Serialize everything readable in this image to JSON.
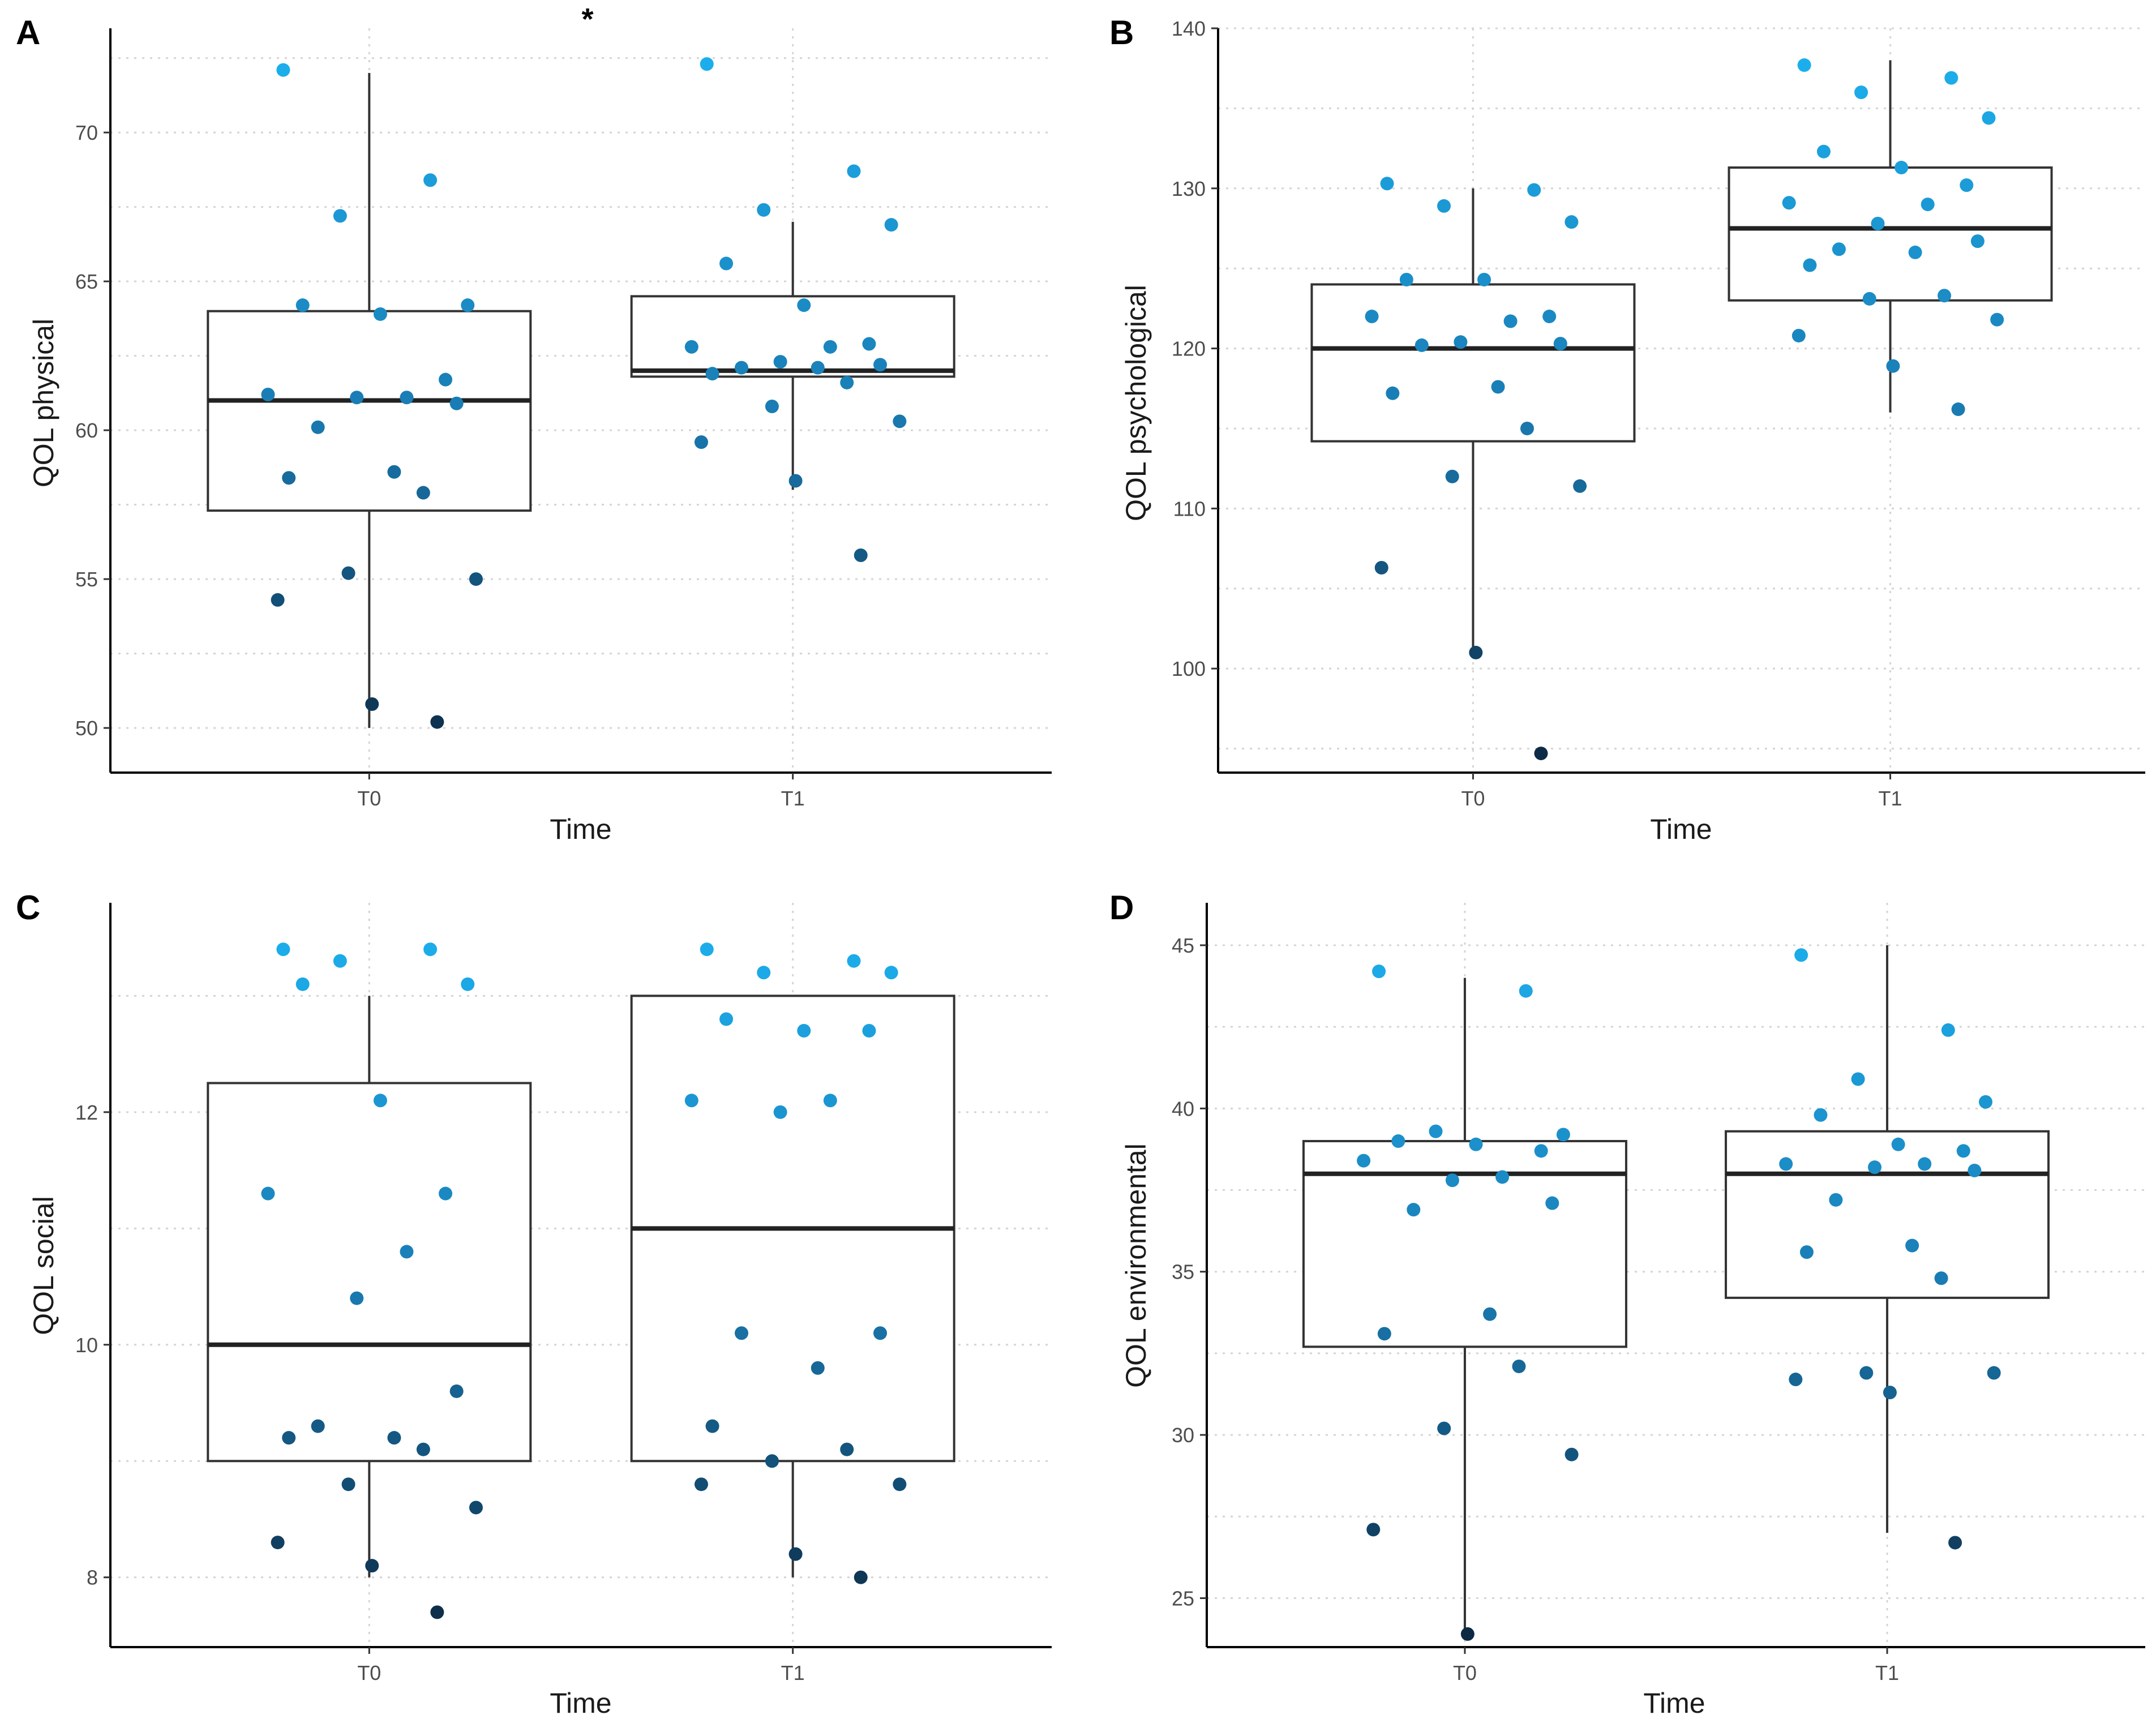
{
  "figure": {
    "xlabel": "Time",
    "significance_marker": "*",
    "color_low": "#0c2740",
    "color_mid": "#1a7db5",
    "color_high": "#1cb3f2"
  },
  "chart_data": [
    {
      "type": "box",
      "panel": "A",
      "ylabel": "QOL physical",
      "xlabel": "Time",
      "categories": [
        "T0",
        "T1"
      ],
      "ylim": [
        48.5,
        73.5
      ],
      "yticks": [
        50,
        55,
        60,
        65,
        70
      ],
      "ytick_labels": [
        "50",
        "55",
        "60",
        "65",
        "70"
      ],
      "grid": true,
      "annotation": "*",
      "boxes": [
        {
          "category": "T0",
          "min": 50,
          "q1": 57.3,
          "median": 61,
          "q3": 64,
          "max": 72
        },
        {
          "category": "T1",
          "min": 58,
          "q1": 61.8,
          "median": 62,
          "q3": 64.5,
          "max": 67
        }
      ],
      "points": [
        {
          "category": "T0",
          "values": [
            72.1,
            68.4,
            67.2,
            64.2,
            64.2,
            63.9,
            61.7,
            61.2,
            61.1,
            61.1,
            60.9,
            60.1,
            58.6,
            58.4,
            57.9,
            55.2,
            55.0,
            54.3,
            50.8,
            50.2
          ]
        },
        {
          "category": "T1",
          "values": [
            72.3,
            68.7,
            67.4,
            66.9,
            65.6,
            64.2,
            62.9,
            62.8,
            62.8,
            62.3,
            62.2,
            62.1,
            62.1,
            61.9,
            61.6,
            60.8,
            60.3,
            59.6,
            58.3,
            55.8
          ]
        }
      ]
    },
    {
      "type": "box",
      "panel": "B",
      "ylabel": "QOL psychological",
      "xlabel": "Time",
      "categories": [
        "T0",
        "T1"
      ],
      "ylim": [
        93.5,
        140
      ],
      "yticks": [
        100,
        110,
        120,
        130,
        140
      ],
      "ytick_labels": [
        "100",
        "110",
        "120",
        "130",
        "140"
      ],
      "grid": true,
      "boxes": [
        {
          "category": "T0",
          "min": 101,
          "q1": 114.2,
          "median": 120,
          "q3": 124,
          "max": 130
        },
        {
          "category": "T1",
          "min": 116,
          "q1": 123,
          "median": 127.5,
          "q3": 131.3,
          "max": 138
        }
      ],
      "points": [
        {
          "category": "T0",
          "values": [
            130.3,
            129.9,
            128.9,
            127.9,
            124.3,
            124.3,
            122.0,
            122.0,
            121.7,
            120.4,
            120.3,
            120.2,
            117.6,
            117.2,
            115.0,
            112.0,
            111.4,
            106.3,
            101.0,
            94.7
          ]
        },
        {
          "category": "T1",
          "values": [
            137.7,
            136.9,
            136.0,
            134.4,
            132.3,
            131.3,
            130.2,
            129.1,
            129.0,
            127.8,
            126.7,
            126.2,
            126.0,
            125.2,
            123.3,
            123.1,
            121.8,
            120.8,
            118.9,
            116.2
          ]
        }
      ]
    },
    {
      "type": "box",
      "panel": "C",
      "ylabel": "QOL social",
      "xlabel": "Time",
      "categories": [
        "T0",
        "T1"
      ],
      "ylim": [
        7.4,
        13.8
      ],
      "yticks": [
        8,
        10,
        12
      ],
      "ytick_labels": [
        "8",
        "10",
        "12"
      ],
      "grid": true,
      "boxes": [
        {
          "category": "T0",
          "min": 8,
          "q1": 9,
          "median": 10,
          "q3": 12.25,
          "max": 13
        },
        {
          "category": "T1",
          "min": 8,
          "q1": 9,
          "median": 11,
          "q3": 13,
          "max": 13
        }
      ],
      "points": [
        {
          "category": "T0",
          "values": [
            13.4,
            13.4,
            13.3,
            13.1,
            13.1,
            12.1,
            11.3,
            11.3,
            10.8,
            10.4,
            9.6,
            9.3,
            9.2,
            9.2,
            9.1,
            8.8,
            8.6,
            8.3,
            8.1,
            7.7
          ]
        },
        {
          "category": "T1",
          "values": [
            13.4,
            13.3,
            13.2,
            13.2,
            12.8,
            12.7,
            12.7,
            12.1,
            12.1,
            12.0,
            10.1,
            10.1,
            9.8,
            9.3,
            9.1,
            9.0,
            8.8,
            8.8,
            8.2,
            8.0
          ]
        }
      ]
    },
    {
      "type": "box",
      "panel": "D",
      "ylabel": "QOL environmental",
      "xlabel": "Time",
      "categories": [
        "T0",
        "T1"
      ],
      "ylim": [
        23.5,
        46.3
      ],
      "yticks": [
        25,
        30,
        35,
        40,
        45
      ],
      "ytick_labels": [
        "25",
        "30",
        "35",
        "40",
        "45"
      ],
      "grid": true,
      "boxes": [
        {
          "category": "T0",
          "min": 24,
          "q1": 32.7,
          "median": 38,
          "q3": 39,
          "max": 44
        },
        {
          "category": "T1",
          "min": 27,
          "q1": 34.2,
          "median": 38,
          "q3": 39.3,
          "max": 45
        }
      ],
      "points": [
        {
          "category": "T0",
          "values": [
            44.2,
            43.6,
            39.3,
            39.2,
            39.0,
            38.9,
            38.7,
            38.4,
            37.9,
            37.8,
            37.1,
            36.9,
            33.7,
            33.1,
            32.1,
            30.2,
            29.4,
            27.1,
            23.9
          ]
        },
        {
          "category": "T1",
          "values": [
            44.7,
            42.4,
            40.9,
            40.2,
            39.8,
            38.9,
            38.7,
            38.3,
            38.3,
            38.2,
            38.1,
            37.2,
            35.8,
            35.6,
            34.8,
            31.9,
            31.9,
            31.7,
            31.3,
            26.7
          ]
        }
      ]
    }
  ]
}
